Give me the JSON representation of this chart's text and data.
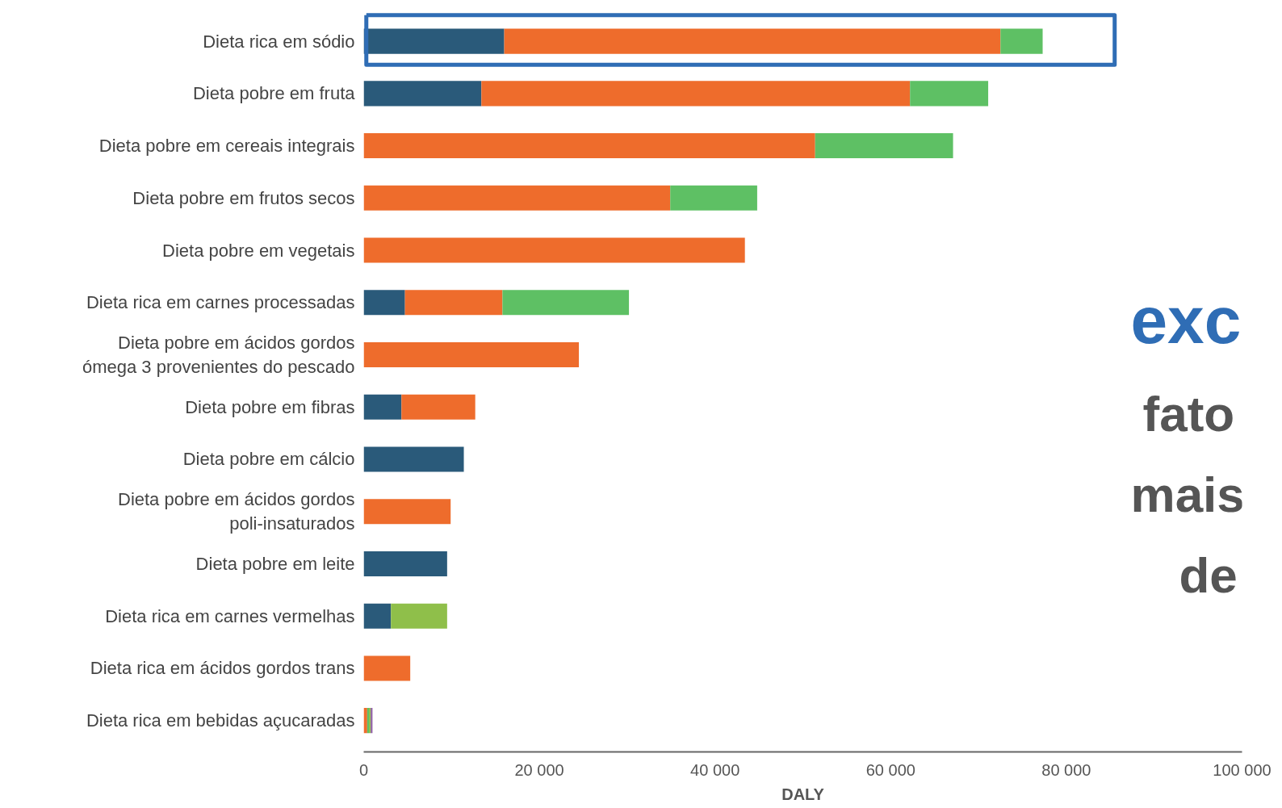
{
  "chart_data": {
    "type": "bar",
    "orientation": "horizontal",
    "stacked": true,
    "categories": [
      "Dieta rica em sódio",
      "Dieta pobre em fruta",
      "Dieta pobre em cereais integrais",
      "Dieta pobre em frutos secos",
      "Dieta pobre em vegetais",
      "Dieta rica em carnes processadas",
      "Dieta pobre em ácidos gordos\nómega 3 provenientes do pescado",
      "Dieta pobre em fibras",
      "Dieta pobre em cálcio",
      "Dieta pobre em ácidos gordos\npoli-insaturados",
      "Dieta pobre em leite",
      "Dieta rica em carnes vermelhas",
      "Dieta rica em ácidos gordos trans",
      "Dieta rica em bebidas açucaradas"
    ],
    "series": [
      {
        "color": "#2a5a7a",
        "values": [
          16000,
          13400,
          null,
          null,
          null,
          4700,
          null,
          4300,
          11400,
          null,
          9500,
          3100,
          null,
          null
        ]
      },
      {
        "color": "#ee6c2c",
        "values": [
          56500,
          48800,
          51400,
          34900,
          43400,
          11100,
          24500,
          8400,
          null,
          9900,
          null,
          null,
          5300,
          400
        ]
      },
      {
        "color": "#5ec064",
        "values": [
          4800,
          8900,
          15700,
          9900,
          null,
          14400,
          null,
          null,
          null,
          null,
          null,
          null,
          null,
          200
        ]
      },
      {
        "color": "#8fbf4a",
        "values": [
          null,
          null,
          null,
          null,
          null,
          null,
          null,
          null,
          null,
          null,
          null,
          6400,
          null,
          200
        ]
      },
      {
        "color": "#8e5ea2",
        "values": [
          null,
          null,
          null,
          null,
          null,
          null,
          null,
          null,
          null,
          null,
          null,
          null,
          null,
          200
        ]
      }
    ],
    "xlim": [
      0,
      100000
    ],
    "xticks": [
      0,
      {
        "value": 20000,
        "label": "20 000"
      },
      {
        "value": 40000,
        "label": "40 000"
      },
      {
        "value": 60000,
        "label": "60 000"
      },
      {
        "value": 80000,
        "label": "80 000"
      },
      {
        "value": 100000,
        "label": "100 000"
      }
    ],
    "xlabel": "DALY",
    "grid": false,
    "annotations": [
      "exc",
      "fato",
      "mais",
      "de"
    ]
  }
}
